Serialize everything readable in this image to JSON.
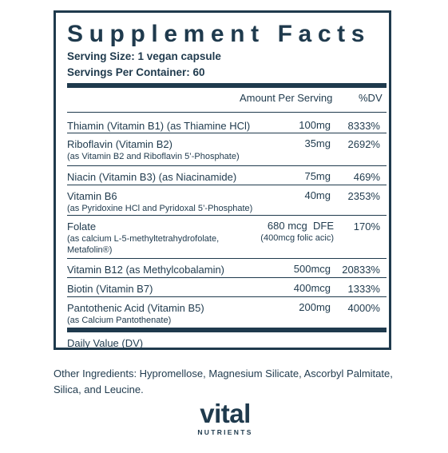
{
  "title": "Supplement Facts",
  "serving_size": "Serving Size: 1 vegan capsule",
  "servings_per_container": "Servings Per Container: 60",
  "header": {
    "amount": "Amount Per Serving",
    "dv": "%DV"
  },
  "rows": [
    {
      "name": "Thiamin (Vitamin B1) (as Thiamine HCl)",
      "detail": "",
      "amount": "100mg",
      "amount_detail": "",
      "dv": "8333%"
    },
    {
      "name": "Riboflavin (Vitamin B2)",
      "detail": "(as Vitamin B2 and Riboflavin 5’-Phosphate)",
      "amount": "35mg",
      "amount_detail": "",
      "dv": "2692%"
    },
    {
      "name": "Niacin (Vitamin B3) (as Niacinamide)",
      "detail": "",
      "amount": "75mg",
      "amount_detail": "",
      "dv": "469%"
    },
    {
      "name": "Vitamin B6",
      "detail": "(as Pyridoxine HCl and Pyridoxal 5’-Phosphate)",
      "amount": "40mg",
      "amount_detail": "",
      "dv": "2353%"
    },
    {
      "name": "Folate",
      "detail": "(as calcium L-5-methyltetrahydrofolate,",
      "detail2": "Metafolin®)",
      "amount": "680 mcg  DFE",
      "amount_detail": "(400mcg folic acic)",
      "dv": "170%"
    },
    {
      "name": "Vitamin B12 (as Methylcobalamin)",
      "detail": "",
      "amount": "500mcg",
      "amount_detail": "",
      "dv": "20833%"
    },
    {
      "name": "Biotin (Vitamin B7)",
      "detail": "",
      "amount": "400mcg",
      "amount_detail": "",
      "dv": "1333%"
    },
    {
      "name": "Pantothenic Acid (Vitamin B5)",
      "detail": "(as Calcium Pantothenate)",
      "amount": "200mg",
      "amount_detail": "",
      "dv": "4000%"
    }
  ],
  "daily_value_note": "Daily Value (DV)",
  "other_ingredients": "Other Ingredients: Hypromellose, Magnesium Silicate, Ascorbyl Palmitate, Silica, and Leucine.",
  "brand": {
    "name": "vital",
    "tagline": "NUTRIENTS"
  },
  "colors": {
    "ink": "#1f3a4d",
    "background": "#ffffff"
  }
}
